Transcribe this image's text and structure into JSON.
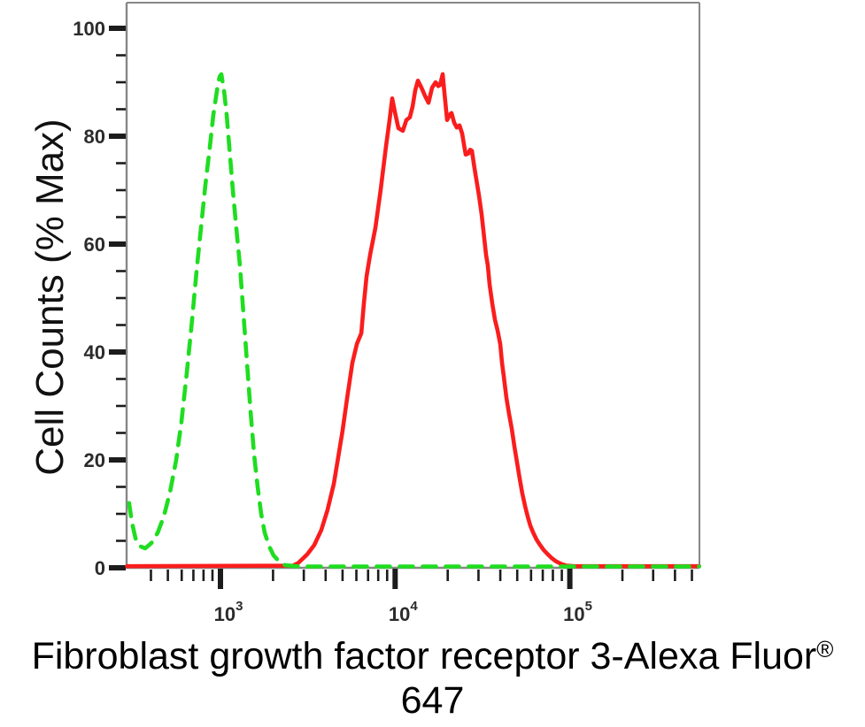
{
  "title": {
    "line1": "Fibroblast growth factor receptor 3-Alexa Fluor",
    "registered_symbol": "®",
    "line2": "647"
  },
  "colors": {
    "green_series": "#1fdd20",
    "red_series": "#fa1d1d",
    "frame": "#878787",
    "tick": "#1c1c1c",
    "tick_label": "#2b2b2b"
  },
  "chart_data": {
    "type": "line",
    "subtype": "flow-cytometry-overlay-histogram",
    "title": "Fibroblast growth factor receptor 3-Alexa Fluor® 647",
    "xlabel": "Fibroblast growth factor receptor 3-Alexa Fluor® 647",
    "ylabel": "Cell Counts (% Max)",
    "xscale": "log",
    "xlim": [
      290,
      550000
    ],
    "ylim": [
      0,
      105
    ],
    "grid": false,
    "legend": "none",
    "x_major_ticks": [
      1000,
      10000,
      100000
    ],
    "x_tick_labels": [
      {
        "base": "10",
        "exp": "3"
      },
      {
        "base": "10",
        "exp": "4"
      },
      {
        "base": "10",
        "exp": "5"
      }
    ],
    "y_major_ticks": [
      0,
      20,
      40,
      60,
      80,
      100
    ],
    "y_minor_step": 5,
    "series": [
      {
        "name": "green-dashed-series",
        "color": "#1fdd20",
        "line_style": "dashed",
        "peak_x": 1012,
        "peak_y": 91.5,
        "points": [
          [
            300,
            12
          ],
          [
            311,
            8.5
          ],
          [
            326,
            5.5
          ],
          [
            346,
            4
          ],
          [
            371,
            3.6
          ],
          [
            403,
            4.6
          ],
          [
            437,
            6.5
          ],
          [
            474,
            9.5
          ],
          [
            514,
            14
          ],
          [
            558,
            20
          ],
          [
            598,
            27
          ],
          [
            641,
            36
          ],
          [
            688,
            46
          ],
          [
            730,
            55
          ],
          [
            774,
            63
          ],
          [
            820,
            71
          ],
          [
            869,
            78
          ],
          [
            911,
            84
          ],
          [
            955,
            88.5
          ],
          [
            988,
            91
          ],
          [
            1012,
            91.5
          ],
          [
            1048,
            88.5
          ],
          [
            1085,
            84
          ],
          [
            1124,
            78
          ],
          [
            1178,
            70
          ],
          [
            1233,
            63
          ],
          [
            1293,
            56
          ],
          [
            1355,
            47
          ],
          [
            1419,
            38
          ],
          [
            1487,
            29
          ],
          [
            1559,
            21
          ],
          [
            1633,
            15
          ],
          [
            1711,
            10
          ],
          [
            1792,
            6.5
          ],
          [
            1901,
            4
          ],
          [
            2014,
            2.3
          ],
          [
            2162,
            1.2
          ],
          [
            2344,
            0.5
          ],
          [
            2800,
            0.25
          ],
          [
            550000,
            0.25
          ]
        ]
      },
      {
        "name": "red-solid-series",
        "color": "#fa1d1d",
        "line_style": "solid",
        "peak_x": 18710,
        "peak_y": 91.5,
        "points": [
          [
            292,
            0.3
          ],
          [
            2600,
            0.4
          ],
          [
            2790,
            0.9
          ],
          [
            3140,
            2.5
          ],
          [
            3440,
            4.2
          ],
          [
            3780,
            7
          ],
          [
            4100,
            10.7
          ],
          [
            4460,
            15.6
          ],
          [
            4720,
            20.5
          ],
          [
            5000,
            25.4
          ],
          [
            5310,
            31.5
          ],
          [
            5690,
            38
          ],
          [
            6040,
            41.5
          ],
          [
            6400,
            43.5
          ],
          [
            6620,
            49
          ],
          [
            6860,
            54
          ],
          [
            7190,
            58
          ],
          [
            7710,
            63
          ],
          [
            8260,
            70
          ],
          [
            8860,
            78
          ],
          [
            9290,
            83
          ],
          [
            9620,
            87
          ],
          [
            9960,
            84.5
          ],
          [
            10440,
            81.5
          ],
          [
            11070,
            81
          ],
          [
            11600,
            83
          ],
          [
            12140,
            83.5
          ],
          [
            12580,
            85.5
          ],
          [
            13030,
            88.5
          ],
          [
            13490,
            90.3
          ],
          [
            14150,
            89
          ],
          [
            14820,
            87.5
          ],
          [
            15530,
            86.2
          ],
          [
            16270,
            89
          ],
          [
            17050,
            90
          ],
          [
            17660,
            89.3
          ],
          [
            18070,
            89.5
          ],
          [
            18710,
            91.5
          ],
          [
            19150,
            88
          ],
          [
            19850,
            83
          ],
          [
            20560,
            84
          ],
          [
            21040,
            84.3
          ],
          [
            21790,
            82.5
          ],
          [
            22560,
            81.6
          ],
          [
            23370,
            82
          ],
          [
            24200,
            80.5
          ],
          [
            24770,
            78.5
          ],
          [
            25350,
            76.6
          ],
          [
            26250,
            76.8
          ],
          [
            26870,
            77.5
          ],
          [
            27500,
            77.3
          ],
          [
            28490,
            74
          ],
          [
            29510,
            71
          ],
          [
            30210,
            69
          ],
          [
            31280,
            65.5
          ],
          [
            32390,
            61
          ],
          [
            33160,
            58
          ],
          [
            33940,
            56
          ],
          [
            34750,
            52.5
          ],
          [
            35990,
            49
          ],
          [
            37270,
            46
          ],
          [
            38600,
            44
          ],
          [
            39970,
            41.5
          ],
          [
            40920,
            38
          ],
          [
            41880,
            35.5
          ],
          [
            43370,
            31.5
          ],
          [
            44900,
            28.5
          ],
          [
            46500,
            25.8
          ],
          [
            48150,
            22.5
          ],
          [
            49860,
            19.5
          ],
          [
            51630,
            16.5
          ],
          [
            53460,
            13.8
          ],
          [
            55400,
            11.5
          ],
          [
            57370,
            9.5
          ],
          [
            59400,
            7.8
          ],
          [
            61520,
            6.6
          ],
          [
            64520,
            5.2
          ],
          [
            67610,
            4.2
          ],
          [
            70860,
            3.3
          ],
          [
            74260,
            2.6
          ],
          [
            78690,
            1.8
          ],
          [
            83390,
            1.2
          ],
          [
            89430,
            0.7
          ],
          [
            95910,
            0.4
          ],
          [
            105300,
            0.3
          ],
          [
            550000,
            0.3
          ]
        ]
      }
    ]
  }
}
